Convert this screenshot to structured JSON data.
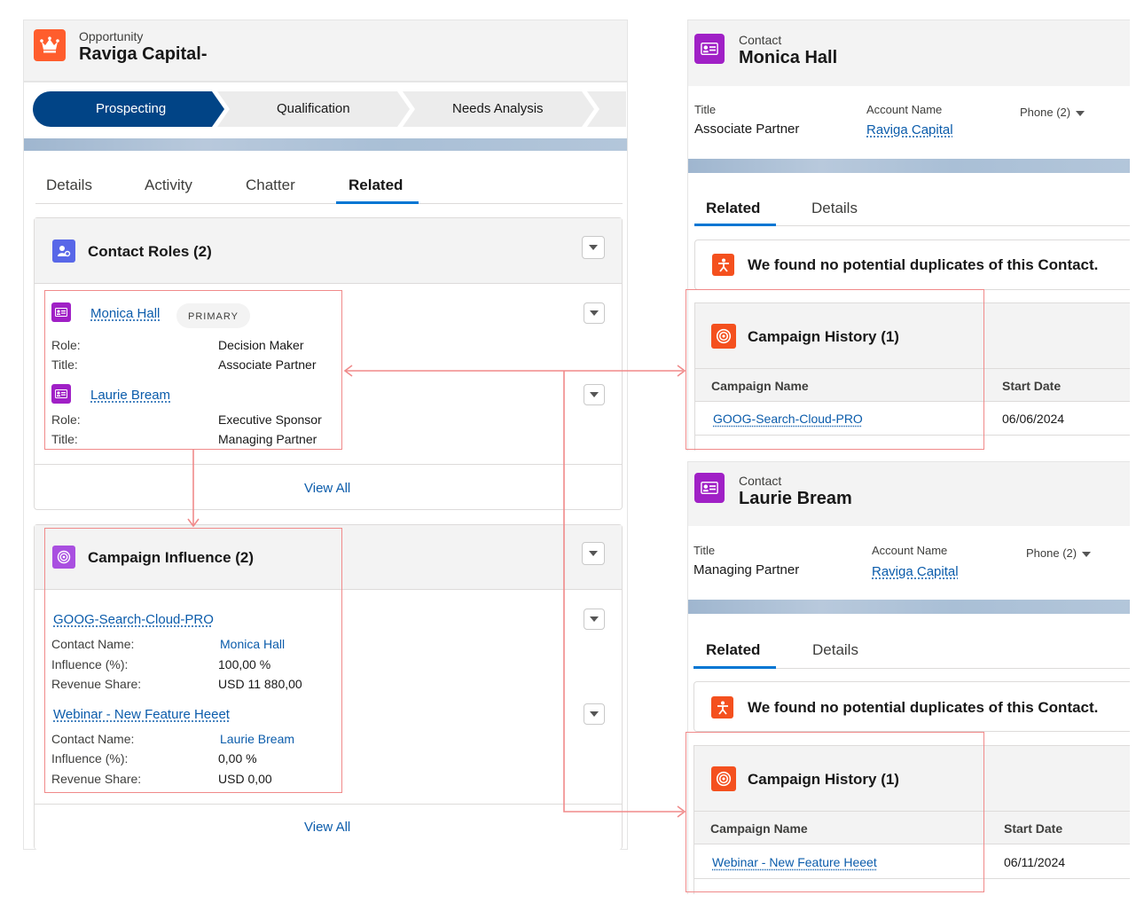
{
  "opportunity": {
    "object_label": "Opportunity",
    "name": "Raviga Capital-",
    "icon": "crown-icon",
    "path": [
      "Prospecting",
      "Qualification",
      "Needs Analysis"
    ],
    "tabs": [
      "Details",
      "Activity",
      "Chatter",
      "Related"
    ],
    "contact_roles": {
      "title": "Contact Roles (2)",
      "items": [
        {
          "name": "Monica Hall",
          "badge": "PRIMARY",
          "role_label": "Role:",
          "role": "Decision Maker",
          "title_label": "Title:",
          "title": "Associate Partner"
        },
        {
          "name": "Laurie Bream",
          "role_label": "Role:",
          "role": "Executive Sponsor",
          "title_label": "Title:",
          "title": "Managing Partner"
        }
      ],
      "view_all": "View All"
    },
    "campaign_influence": {
      "title": "Campaign Influence (2)",
      "items": [
        {
          "campaign": "GOOG-Search-Cloud-PRO",
          "contact_label": "Contact Name:",
          "contact": "Monica Hall",
          "influence_label": "Influence (%):",
          "influence": "100,00 %",
          "revenue_label": "Revenue Share:",
          "revenue": "USD 11 880,00"
        },
        {
          "campaign": "Webinar - New Feature Heeet",
          "contact_label": "Contact Name:",
          "contact": "Laurie Bream",
          "influence_label": "Influence (%):",
          "influence": "0,00 %",
          "revenue_label": "Revenue Share:",
          "revenue": "USD 0,00"
        }
      ],
      "view_all": "View All"
    }
  },
  "contacts": [
    {
      "object_label": "Contact",
      "name": "Monica Hall",
      "title_label": "Title",
      "title": "Associate Partner",
      "account_label": "Account Name",
      "account": "Raviga Capital",
      "phone": "Phone (2)",
      "tabs": [
        "Related",
        "Details"
      ],
      "duplicates": "We found no potential duplicates of this Contact.",
      "campaign_history": {
        "title": "Campaign History (1)",
        "col_name": "Campaign Name",
        "col_date": "Start Date",
        "campaign": "GOOG-Search-Cloud-PRO",
        "start_date": "06/06/2024"
      }
    },
    {
      "object_label": "Contact",
      "name": "Laurie Bream",
      "title_label": "Title",
      "title": "Managing Partner",
      "account_label": "Account Name",
      "account": "Raviga Capital",
      "phone": "Phone (2)",
      "tabs": [
        "Related",
        "Details"
      ],
      "duplicates": "We found no potential duplicates of this Contact.",
      "campaign_history": {
        "title": "Campaign History (1)",
        "col_name": "Campaign Name",
        "col_date": "Start Date",
        "campaign": "Webinar - New Feature Heeet",
        "start_date": "06/11/2024"
      }
    }
  ],
  "colors": {
    "brand_blue": "#014486",
    "link": "#0b5cab",
    "opportunity_icon": "#ff5d2d",
    "contact_icon": "#a094ed",
    "campaign_icon": "#f4501e",
    "annotation": "#f08a8a"
  }
}
